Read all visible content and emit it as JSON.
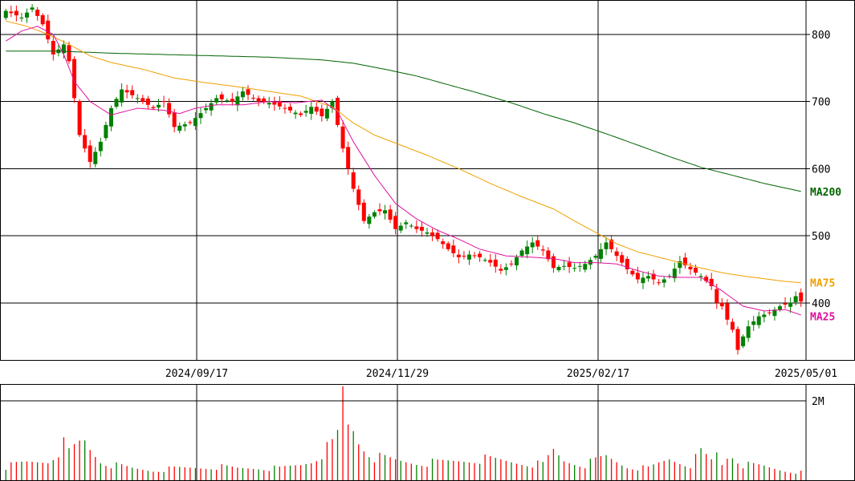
{
  "chart_data": {
    "type": "candlestick",
    "price_panel": {
      "ylim": [
        315,
        850
      ],
      "y_ticks": [
        "400",
        "500",
        "600",
        "700",
        "800"
      ],
      "x_tick_labels": [
        "2024/09/17",
        "2024/11/29",
        "2025/02/17",
        "2025/05/01"
      ],
      "ma_labels": [
        "MA200",
        "MA75",
        "MA25"
      ]
    },
    "volume_panel": {
      "ylim": [
        0,
        2400000
      ],
      "y_tick_value": 2000000,
      "y_tick_label": "2M"
    },
    "colors": {
      "up": "#008000",
      "down": "#ff0000",
      "ma25": "#e0119d",
      "ma75": "#f0a000",
      "ma200": "#006400",
      "grid": "#000000"
    },
    "series_keypoints": {
      "close": [
        [
          0,
          835
        ],
        [
          3,
          825
        ],
        [
          5,
          840
        ],
        [
          7,
          815
        ],
        [
          9,
          770
        ],
        [
          11,
          785
        ],
        [
          12,
          760
        ],
        [
          14,
          650
        ],
        [
          16,
          610
        ],
        [
          18,
          640
        ],
        [
          20,
          690
        ],
        [
          22,
          718
        ],
        [
          25,
          705
        ],
        [
          28,
          690
        ],
        [
          30,
          700
        ],
        [
          32,
          662
        ],
        [
          35,
          668
        ],
        [
          38,
          690
        ],
        [
          40,
          705
        ],
        [
          43,
          700
        ],
        [
          45,
          715
        ],
        [
          48,
          700
        ],
        [
          50,
          698
        ],
        [
          53,
          690
        ],
        [
          56,
          680
        ],
        [
          58,
          692
        ],
        [
          60,
          678
        ],
        [
          62,
          700
        ],
        [
          64,
          630
        ],
        [
          66,
          570
        ],
        [
          68,
          522
        ],
        [
          70,
          535
        ],
        [
          72,
          538
        ],
        [
          74,
          510
        ],
        [
          76,
          520
        ],
        [
          78,
          510
        ],
        [
          80,
          505
        ],
        [
          82,
          495
        ],
        [
          84,
          480
        ],
        [
          86,
          468
        ],
        [
          88,
          472
        ],
        [
          90,
          468
        ],
        [
          92,
          460
        ],
        [
          94,
          448
        ],
        [
          96,
          458
        ],
        [
          98,
          478
        ],
        [
          100,
          490
        ],
        [
          102,
          478
        ],
        [
          104,
          452
        ],
        [
          106,
          455
        ],
        [
          108,
          452
        ],
        [
          110,
          458
        ],
        [
          112,
          470
        ],
        [
          114,
          490
        ],
        [
          116,
          470
        ],
        [
          118,
          450
        ],
        [
          120,
          435
        ],
        [
          122,
          440
        ],
        [
          124,
          430
        ],
        [
          126,
          440
        ],
        [
          128,
          462
        ],
        [
          130,
          450
        ],
        [
          132,
          440
        ],
        [
          134,
          425
        ],
        [
          135,
          400
        ],
        [
          136,
          395
        ],
        [
          137,
          375
        ],
        [
          138,
          360
        ],
        [
          139,
          330
        ],
        [
          140,
          350
        ],
        [
          141,
          365
        ],
        [
          143,
          380
        ],
        [
          145,
          385
        ],
        [
          147,
          395
        ],
        [
          149,
          400
        ],
        [
          150,
          410
        ],
        [
          151,
          402
        ]
      ],
      "ma25": [
        [
          0,
          790
        ],
        [
          3,
          805
        ],
        [
          6,
          812
        ],
        [
          9,
          800
        ],
        [
          11,
          770
        ],
        [
          13,
          730
        ],
        [
          16,
          700
        ],
        [
          20,
          680
        ],
        [
          25,
          690
        ],
        [
          30,
          687
        ],
        [
          33,
          682
        ],
        [
          36,
          690
        ],
        [
          40,
          695
        ],
        [
          45,
          695
        ],
        [
          50,
          700
        ],
        [
          55,
          698
        ],
        [
          60,
          702
        ],
        [
          63,
          685
        ],
        [
          66,
          640
        ],
        [
          70,
          590
        ],
        [
          74,
          548
        ],
        [
          78,
          525
        ],
        [
          82,
          508
        ],
        [
          86,
          495
        ],
        [
          90,
          480
        ],
        [
          95,
          470
        ],
        [
          100,
          468
        ],
        [
          104,
          466
        ],
        [
          108,
          460
        ],
        [
          112,
          460
        ],
        [
          116,
          458
        ],
        [
          120,
          448
        ],
        [
          124,
          440
        ],
        [
          128,
          438
        ],
        [
          132,
          438
        ],
        [
          136,
          418
        ],
        [
          140,
          395
        ],
        [
          144,
          388
        ],
        [
          148,
          390
        ],
        [
          151,
          382
        ]
      ],
      "ma75": [
        [
          0,
          820
        ],
        [
          4,
          812
        ],
        [
          8,
          800
        ],
        [
          12,
          785
        ],
        [
          16,
          768
        ],
        [
          20,
          758
        ],
        [
          26,
          748
        ],
        [
          32,
          735
        ],
        [
          38,
          728
        ],
        [
          44,
          722
        ],
        [
          50,
          715
        ],
        [
          56,
          708
        ],
        [
          62,
          692
        ],
        [
          66,
          668
        ],
        [
          70,
          650
        ],
        [
          75,
          635
        ],
        [
          80,
          620
        ],
        [
          86,
          600
        ],
        [
          92,
          578
        ],
        [
          98,
          558
        ],
        [
          104,
          540
        ],
        [
          108,
          522
        ],
        [
          112,
          505
        ],
        [
          116,
          488
        ],
        [
          120,
          476
        ],
        [
          124,
          468
        ],
        [
          128,
          460
        ],
        [
          132,
          452
        ],
        [
          136,
          445
        ],
        [
          140,
          440
        ],
        [
          144,
          436
        ],
        [
          148,
          432
        ],
        [
          151,
          430
        ]
      ],
      "ma200": [
        [
          0,
          775
        ],
        [
          10,
          775
        ],
        [
          20,
          772
        ],
        [
          30,
          770
        ],
        [
          40,
          768
        ],
        [
          50,
          766
        ],
        [
          60,
          762
        ],
        [
          66,
          757
        ],
        [
          72,
          748
        ],
        [
          78,
          738
        ],
        [
          84,
          725
        ],
        [
          90,
          712
        ],
        [
          96,
          698
        ],
        [
          102,
          682
        ],
        [
          108,
          668
        ],
        [
          114,
          652
        ],
        [
          120,
          635
        ],
        [
          126,
          618
        ],
        [
          132,
          602
        ],
        [
          138,
          590
        ],
        [
          144,
          578
        ],
        [
          151,
          566
        ]
      ],
      "volume": [
        [
          0,
          350000
        ],
        [
          4,
          450000
        ],
        [
          8,
          500000
        ],
        [
          11,
          900000
        ],
        [
          12,
          700000
        ],
        [
          14,
          950000
        ],
        [
          15,
          1000000
        ],
        [
          16,
          800000
        ],
        [
          18,
          500000
        ],
        [
          20,
          400000
        ],
        [
          24,
          300000
        ],
        [
          28,
          250000
        ],
        [
          32,
          300000
        ],
        [
          36,
          320000
        ],
        [
          40,
          350000
        ],
        [
          44,
          300000
        ],
        [
          48,
          320000
        ],
        [
          52,
          300000
        ],
        [
          56,
          400000
        ],
        [
          58,
          500000
        ],
        [
          62,
          900000
        ],
        [
          63,
          1150000
        ],
        [
          64,
          2250000
        ],
        [
          65,
          1400000
        ],
        [
          66,
          1300000
        ],
        [
          67,
          1000000
        ],
        [
          68,
          850000
        ],
        [
          70,
          600000
        ],
        [
          74,
          500000
        ],
        [
          78,
          450000
        ],
        [
          82,
          450000
        ],
        [
          86,
          500000
        ],
        [
          90,
          550000
        ],
        [
          94,
          500000
        ],
        [
          98,
          450000
        ],
        [
          102,
          400000
        ],
        [
          104,
          750000
        ],
        [
          106,
          500000
        ],
        [
          110,
          400000
        ],
        [
          114,
          600000
        ],
        [
          118,
          350000
        ],
        [
          122,
          300000
        ],
        [
          126,
          550000
        ],
        [
          130,
          400000
        ],
        [
          132,
          700000
        ],
        [
          133,
          600000
        ],
        [
          134,
          500000
        ],
        [
          135,
          700000
        ],
        [
          136,
          400000
        ],
        [
          137,
          600000
        ],
        [
          138,
          650000
        ],
        [
          140,
          400000
        ],
        [
          144,
          350000
        ],
        [
          148,
          250000
        ],
        [
          151,
          200000
        ]
      ]
    }
  }
}
